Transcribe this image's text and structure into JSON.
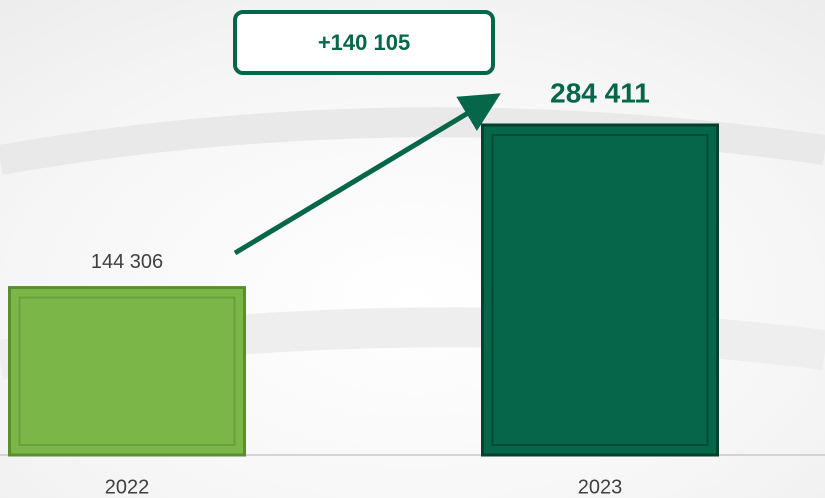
{
  "chart_data": {
    "type": "bar",
    "categories": [
      "2022",
      "2023"
    ],
    "values": [
      144306,
      284411
    ],
    "value_labels": [
      "144 306",
      "284 411"
    ],
    "colors": [
      "#7ab648",
      "#06664a"
    ],
    "annotation": "+140 105"
  }
}
